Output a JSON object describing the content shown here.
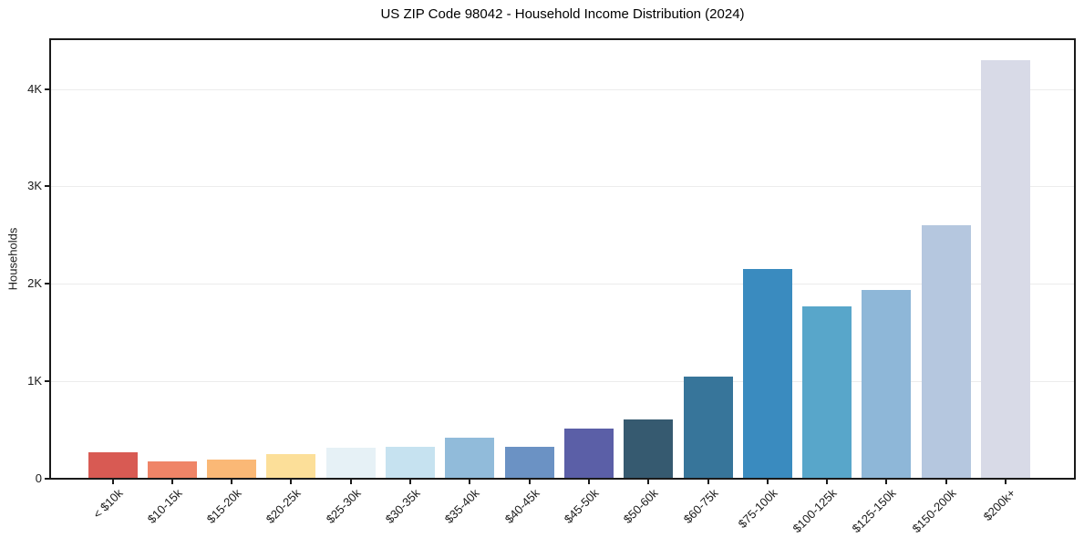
{
  "title": "US ZIP Code 98042 - Household Income Distribution (2024)",
  "colors": {
    "background": "#ffffff",
    "spine": "#1a1a1a",
    "gridline": "#ececec",
    "text": "#1a1a1a"
  },
  "chart_data": {
    "type": "bar",
    "title": "US ZIP Code 98042 - Household Income Distribution (2024)",
    "xlabel": "",
    "ylabel": "Households",
    "categories": [
      "< $10k",
      "$10-15k",
      "$15-20k",
      "$20-25k",
      "$25-30k",
      "$30-35k",
      "$35-40k",
      "$40-45k",
      "$45-50k",
      "$50-60k",
      "$60-75k",
      "$75-100k",
      "$100-125k",
      "$125-150k",
      "$150-200k",
      "$200k+"
    ],
    "values": [
      260,
      170,
      190,
      240,
      310,
      320,
      415,
      320,
      510,
      600,
      1040,
      2145,
      1760,
      1930,
      2595,
      4285
    ],
    "bar_colors": [
      "#d85a53",
      "#ef8467",
      "#fab876",
      "#fcdf99",
      "#e6f1f6",
      "#c6e2f0",
      "#91bbda",
      "#6b92c4",
      "#5b5fa7",
      "#365a70",
      "#37759a",
      "#3a8bbf",
      "#58a6ca",
      "#8eb7d8",
      "#b5c7df",
      "#d8dae7"
    ],
    "ylim": [
      0,
      4530
    ],
    "yticks": [
      {
        "value": 0,
        "label": "0"
      },
      {
        "value": 1000,
        "label": "1K"
      },
      {
        "value": 2000,
        "label": "2K"
      },
      {
        "value": 3000,
        "label": "3K"
      },
      {
        "value": 4000,
        "label": "4K"
      }
    ],
    "grid": "horizontal-only",
    "legend": "none"
  }
}
